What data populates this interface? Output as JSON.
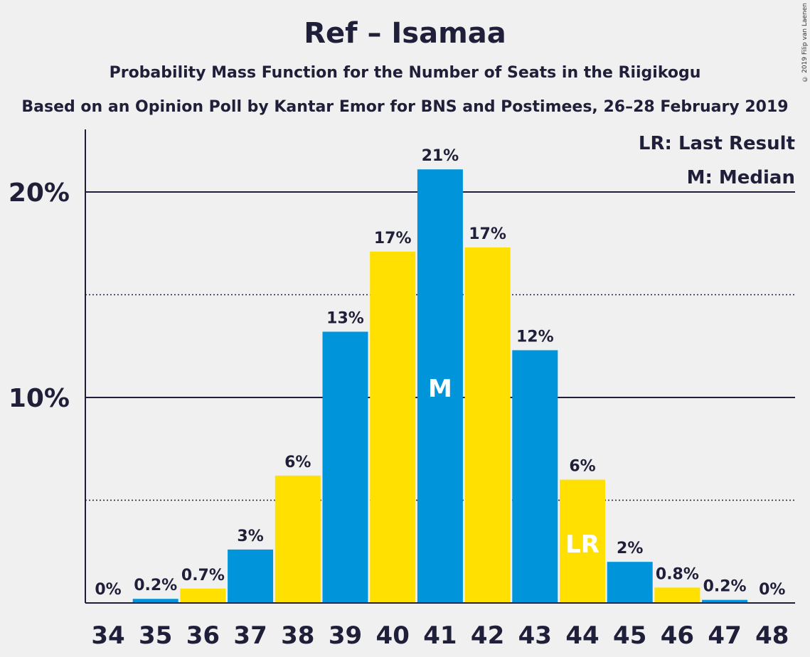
{
  "chart_title": "Ref – Isamaa",
  "chart_subtitle": "Probability Mass Function for the Number of Seats in the Riigikogu",
  "chart_subtitle2": "Based on an Opinion Poll by Kantar Emor for BNS and Postimees, 26–28 February 2019",
  "copyright": "© 2019 Filip van Laenen",
  "legend": {
    "lr": "LR: Last Result",
    "m": "M: Median"
  },
  "colors": {
    "blue": "#0095da",
    "yellow": "#ffe000",
    "background": "#f0f0f0",
    "text": "#1f1f3a"
  },
  "chart_data": {
    "type": "bar",
    "title": "Ref – Isamaa",
    "categories": [
      "34",
      "35",
      "36",
      "37",
      "38",
      "39",
      "40",
      "41",
      "42",
      "43",
      "44",
      "45",
      "46",
      "47",
      "48"
    ],
    "values": [
      0,
      0.2,
      0.7,
      2.6,
      6.2,
      13.2,
      17.1,
      21.1,
      17.3,
      12.3,
      6.0,
      2.0,
      0.75,
      0.15,
      0
    ],
    "data_labels": [
      "0%",
      "0.2%",
      "0.7%",
      "3%",
      "6%",
      "13%",
      "17%",
      "21%",
      "17%",
      "12%",
      "6%",
      "2%",
      "0.8%",
      "0.2%",
      "0%"
    ],
    "bar_colors": [
      "blue",
      "blue",
      "yellow",
      "blue",
      "yellow",
      "blue",
      "yellow",
      "blue",
      "yellow",
      "blue",
      "yellow",
      "blue",
      "yellow",
      "blue",
      "yellow"
    ],
    "ylim": [
      0,
      23
    ],
    "y_major_ticks": [
      10,
      20
    ],
    "y_tick_labels": [
      "10%",
      "20%"
    ],
    "y_minor_gridlines": [
      5,
      15
    ],
    "median_seat": "41",
    "median_marker": "M",
    "last_result_seat": "44",
    "last_result_marker": "LR",
    "legend_placement": "top-right"
  }
}
